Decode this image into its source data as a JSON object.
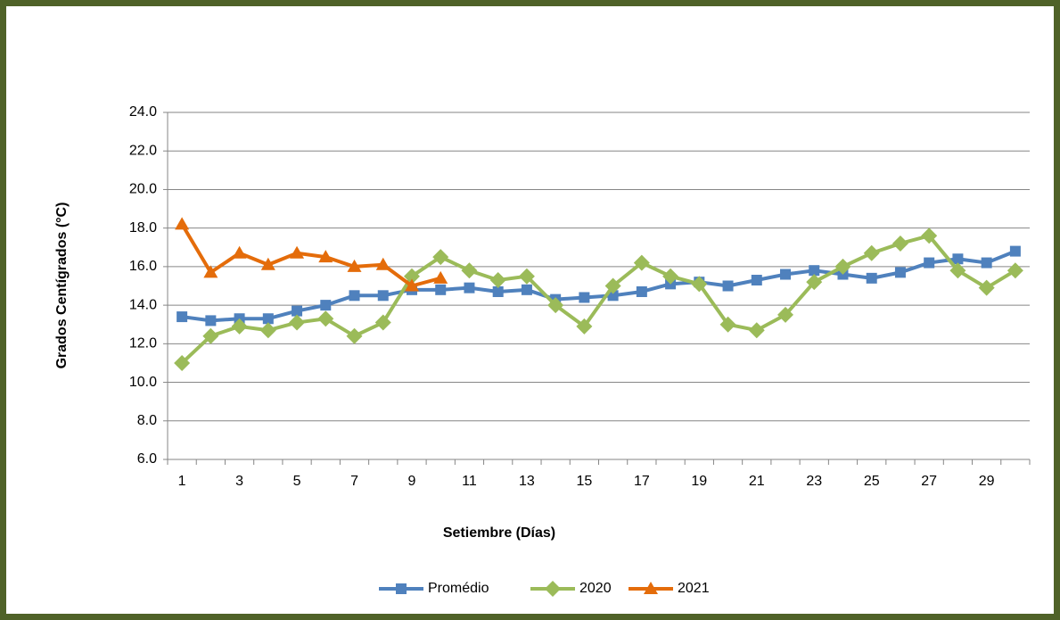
{
  "chart_data": {
    "type": "line",
    "y_label": "Grados Centígrados (°C)",
    "x_label": "Setiembre (Días)",
    "categories": [
      "1",
      null,
      "3",
      null,
      "5",
      null,
      "7",
      null,
      "9",
      null,
      "11",
      null,
      "13",
      null,
      "15",
      null,
      "17",
      null,
      "19",
      null,
      "21",
      null,
      "23",
      null,
      "25",
      null,
      "27",
      null,
      "29",
      null
    ],
    "series": [
      {
        "name": "Promédio",
        "color": "#4f81bd",
        "marker": "square",
        "values": [
          13.4,
          13.2,
          13.3,
          13.3,
          13.7,
          14.0,
          14.5,
          14.5,
          14.8,
          14.8,
          14.9,
          14.7,
          14.8,
          14.3,
          14.4,
          14.5,
          14.7,
          15.1,
          15.2,
          15.0,
          15.3,
          15.6,
          15.8,
          15.6,
          15.4,
          15.7,
          16.2,
          16.4,
          16.2,
          16.8
        ]
      },
      {
        "name": "2020",
        "color": "#9bbb59",
        "marker": "diamond",
        "values": [
          11.0,
          12.4,
          12.9,
          12.7,
          13.1,
          13.3,
          12.4,
          13.1,
          15.5,
          16.5,
          15.8,
          15.3,
          15.5,
          14.0,
          12.9,
          15.0,
          16.2,
          15.5,
          15.1,
          13.0,
          12.7,
          13.5,
          15.2,
          16.0,
          16.7,
          17.2,
          17.6,
          15.8,
          14.9,
          15.8
        ]
      },
      {
        "name": "2021",
        "color": "#e46c0a",
        "marker": "triangle",
        "values": [
          18.2,
          15.7,
          16.7,
          16.1,
          16.7,
          16.5,
          16.0,
          16.1,
          15.0,
          15.4,
          null,
          null,
          null,
          null,
          null,
          null,
          null,
          null,
          null,
          null,
          null,
          null,
          null,
          null,
          null,
          null,
          null,
          null,
          null,
          null
        ]
      }
    ],
    "ylim": [
      6,
      24
    ],
    "yticks": [
      {
        "value": 6,
        "label": "6.0"
      },
      {
        "value": 8,
        "label": "8.0"
      },
      {
        "value": 10,
        "label": "10.0"
      },
      {
        "value": 12,
        "label": "12.0"
      },
      {
        "value": 14,
        "label": "14.0"
      },
      {
        "value": 16,
        "label": "16.0"
      },
      {
        "value": 18,
        "label": "18.0"
      },
      {
        "value": 20,
        "label": "20.0"
      },
      {
        "value": 22,
        "label": "22.0"
      },
      {
        "value": 24,
        "label": "24.0"
      }
    ],
    "grid": true
  }
}
